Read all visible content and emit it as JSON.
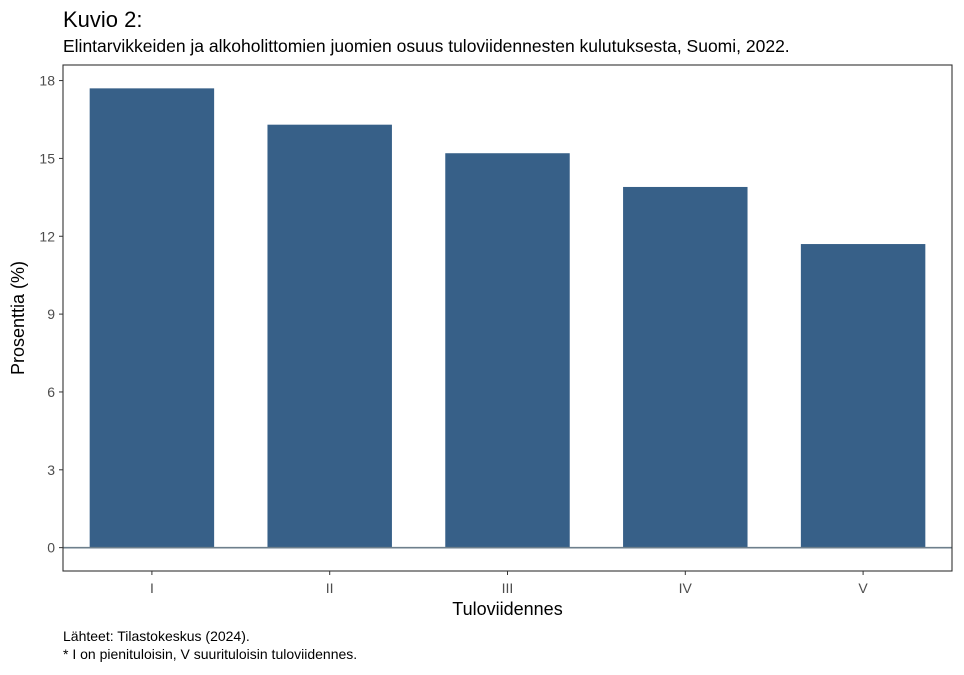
{
  "title": "Kuvio 2:",
  "subtitle": "Elintarvikkeiden ja alkoholittomien juomien osuus tuloviidennesten kulutuksesta, Suomi, 2022.",
  "captions": {
    "source": "Lähteet: Tilastokeskus (2024).",
    "note": "* I on pienituloisin, V suurituloisin tuloviidennes."
  },
  "colors": {
    "bar": "#376088",
    "zero_line": "#6d7f8c",
    "panel_border": "#333333",
    "tick": "#333333"
  },
  "chart_data": {
    "type": "bar",
    "categories": [
      "I",
      "II",
      "III",
      "IV",
      "V"
    ],
    "values": [
      17.7,
      16.3,
      15.2,
      13.9,
      11.7
    ],
    "xlabel": "Tuloviidennes",
    "ylabel": "Prosenttia (%)",
    "ylim": [
      -0.9,
      18.6
    ],
    "yticks": [
      0,
      3,
      6,
      9,
      12,
      15,
      18
    ],
    "grid": false,
    "legend": "none"
  }
}
